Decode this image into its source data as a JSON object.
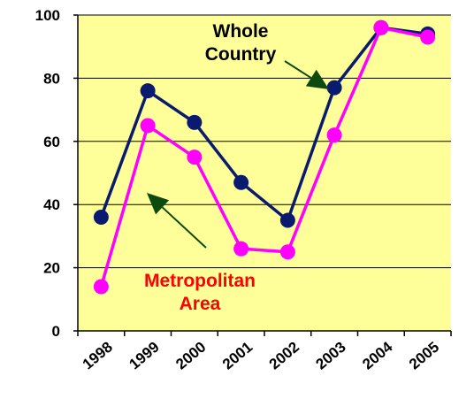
{
  "chart_data": {
    "type": "line",
    "categories": [
      "1998",
      "1999",
      "2000",
      "2001",
      "2002",
      "2003",
      "2004",
      "2005"
    ],
    "ylim": [
      0,
      100
    ],
    "yticks": [
      0,
      20,
      40,
      60,
      80,
      100
    ],
    "grid": true,
    "series": [
      {
        "name": "Whole Country",
        "name_lines": [
          "Whole",
          "Country"
        ],
        "color": "#0a1a6e",
        "values": [
          36,
          76,
          66,
          47,
          35,
          77,
          96,
          94
        ]
      },
      {
        "name": "Metropolitan Area",
        "name_lines": [
          "Metropolitan",
          "Area"
        ],
        "color": "#ff00ff",
        "values": [
          14,
          65,
          55,
          26,
          25,
          62,
          96,
          93
        ]
      }
    ],
    "plot_background": "#ffff99",
    "arrow_color": "#0d4a0d",
    "whole_label_color": "#000000",
    "metro_label_color": "#ff0000"
  }
}
